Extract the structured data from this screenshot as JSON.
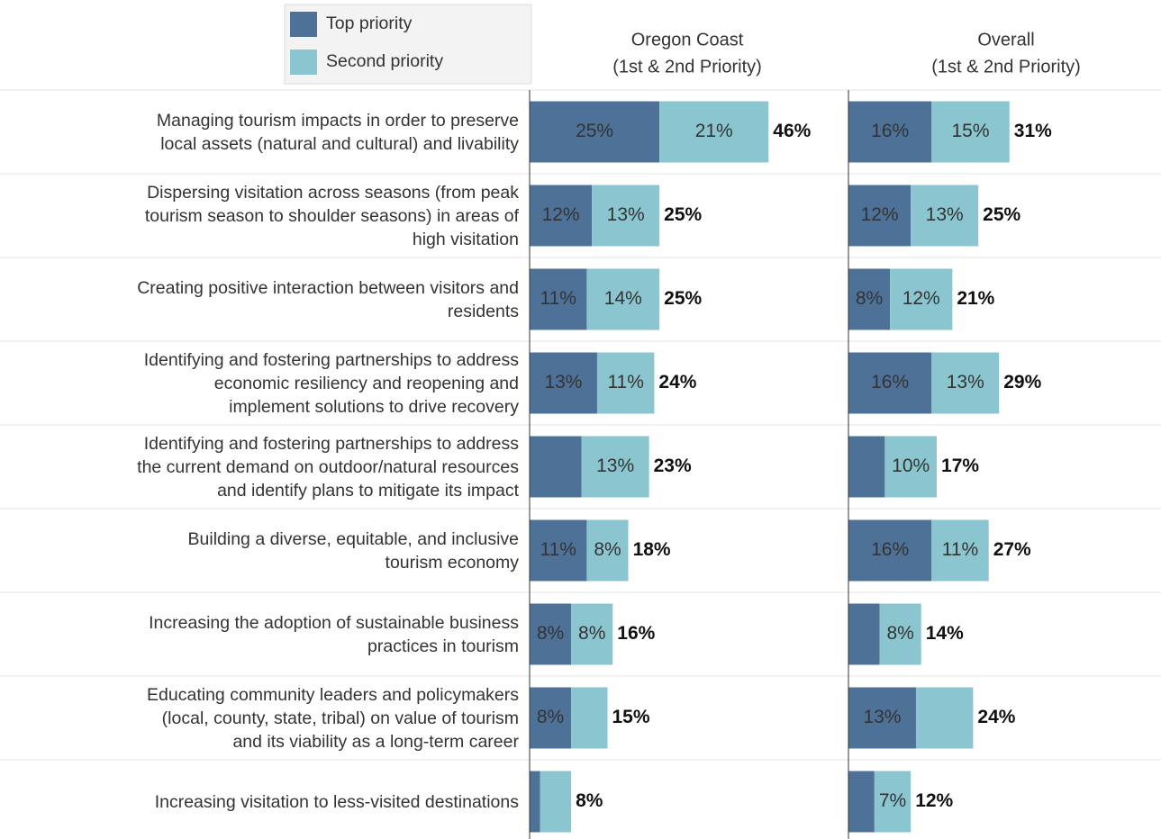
{
  "chart_data": {
    "type": "stacked-bar",
    "categories": [
      "Managing tourism impacts in order to preserve\nlocal assets (natural and cultural) and livability",
      "Dispersing visitation across seasons (from peak\ntourism season to shoulder seasons) in areas of\nhigh visitation",
      "Creating positive interaction between visitors and\nresidents",
      "Identifying and fostering partnerships to address\neconomic resiliency and reopening and\nimplement solutions to drive recovery",
      "Identifying and fostering partnerships to address\nthe current demand on outdoor/natural resources\nand identify plans to mitigate its impact",
      "Building a diverse, equitable, and inclusive\ntourism economy",
      "Increasing the adoption of sustainable business\npractices in tourism",
      "Educating community leaders and policymakers\n(local, county, state, tribal) on value of tourism\nand its viability as a long-term career",
      "Increasing visitation to less-visited destinations"
    ],
    "series": [
      {
        "name": "Top priority",
        "color": "#4e7198"
      },
      {
        "name": "Second priority",
        "color": "#8bc6d0"
      }
    ],
    "xlim": [
      0,
      60
    ],
    "panels": [
      {
        "title": "Oregon Coast",
        "subtitle": "(1st & 2nd Priority)",
        "series": [
          {
            "values": [
              25,
              12,
              11,
              13,
              10,
              11,
              8,
              8,
              2
            ],
            "value_labels": [
              "25%",
              "12%",
              "11%",
              "13%",
              null,
              "11%",
              "8%",
              "8%",
              null
            ]
          },
          {
            "values": [
              21,
              13,
              14,
              11,
              13,
              8,
              8,
              7,
              6
            ],
            "value_labels": [
              "21%",
              "13%",
              "14%",
              "11%",
              "13%",
              "8%",
              "8%",
              null,
              null
            ]
          }
        ],
        "totals": {
          "values": [
            46,
            25,
            25,
            24,
            23,
            18,
            16,
            15,
            8
          ],
          "value_labels": [
            "46%",
            "25%",
            "25%",
            "24%",
            "23%",
            "18%",
            "16%",
            "15%",
            "8%"
          ]
        }
      },
      {
        "title": "Overall",
        "subtitle": "(1st & 2nd Priority)",
        "series": [
          {
            "values": [
              16,
              12,
              8,
              16,
              7,
              16,
              6,
              13,
              5
            ],
            "value_labels": [
              "16%",
              "12%",
              "8%",
              "16%",
              null,
              "16%",
              null,
              "13%",
              null
            ]
          },
          {
            "values": [
              15,
              13,
              12,
              13,
              10,
              11,
              8,
              11,
              7
            ],
            "value_labels": [
              "15%",
              "13%",
              "12%",
              "13%",
              "10%",
              "11%",
              "8%",
              null,
              "7%"
            ]
          }
        ],
        "totals": {
          "values": [
            31,
            25,
            21,
            29,
            17,
            27,
            14,
            24,
            12
          ],
          "value_labels": [
            "31%",
            "25%",
            "21%",
            "29%",
            "17%",
            "27%",
            "14%",
            "24%",
            "12%"
          ]
        }
      }
    ]
  }
}
